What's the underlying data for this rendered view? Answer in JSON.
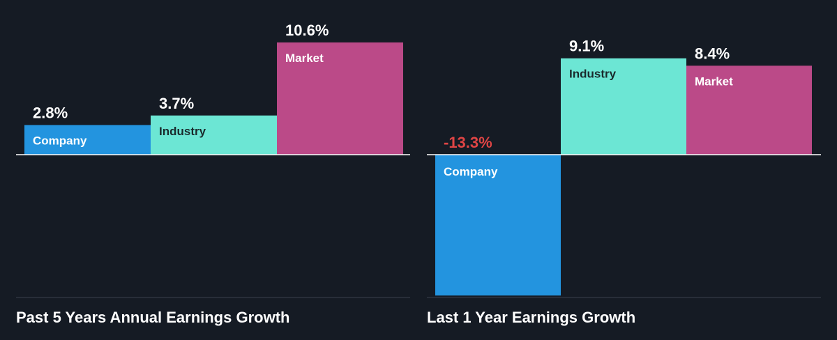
{
  "chart_data": [
    {
      "type": "bar",
      "title": "Past 5 Years Annual Earnings Growth",
      "categories": [
        "Company",
        "Industry",
        "Market"
      ],
      "values": [
        2.8,
        3.7,
        10.6
      ],
      "value_labels": [
        "2.8%",
        "3.7%",
        "10.6%"
      ],
      "ylim": [
        -20,
        12
      ],
      "xlabel": "",
      "ylabel": "",
      "grid": false,
      "legend": "none"
    },
    {
      "type": "bar",
      "title": "Last 1 Year Earnings Growth",
      "categories": [
        "Company",
        "Industry",
        "Market"
      ],
      "values": [
        -13.3,
        9.1,
        8.4
      ],
      "value_labels": [
        "-13.3%",
        "9.1%",
        "8.4%"
      ],
      "ylim": [
        -20,
        12
      ],
      "xlabel": "",
      "ylabel": "",
      "grid": false,
      "legend": "none"
    }
  ],
  "colors": {
    "background": "#151b24",
    "company": "#2394df",
    "industry": "#6ce6d4",
    "market": "#bb4a88",
    "negative_label": "#e04545",
    "positive_label": "#ffffff",
    "axis": "#ffffff",
    "baseline_bottom": "#3a414c"
  }
}
